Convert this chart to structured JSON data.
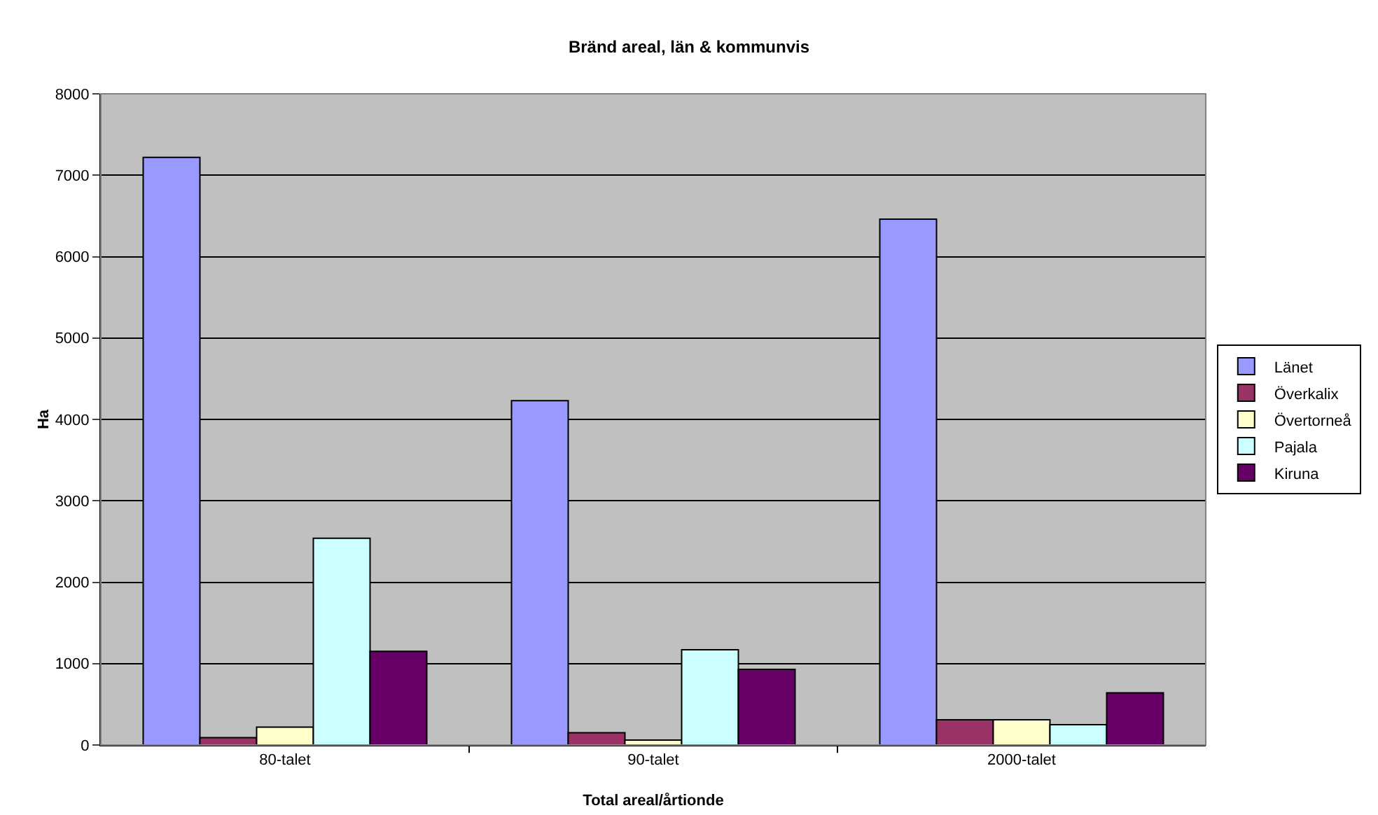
{
  "chart_data": {
    "type": "bar",
    "title": "Bränd areal, län & kommunvis",
    "xlabel": "Total areal/årtionde",
    "ylabel": "Ha",
    "categories": [
      "80-talet",
      "90-talet",
      "2000-talet"
    ],
    "series": [
      {
        "name": "Länet",
        "color": "#9999ff",
        "values": [
          7220,
          4230,
          6460
        ]
      },
      {
        "name": "Överkalix",
        "color": "#993366",
        "values": [
          90,
          150,
          310
        ]
      },
      {
        "name": "Övertorneå",
        "color": "#ffffcc",
        "values": [
          220,
          60,
          310
        ]
      },
      {
        "name": "Pajala",
        "color": "#ccffff",
        "values": [
          2540,
          1170,
          250
        ]
      },
      {
        "name": "Kiruna",
        "color": "#660066",
        "values": [
          1150,
          930,
          640
        ]
      }
    ],
    "ylim": [
      0,
      8000
    ],
    "yticks": [
      0,
      1000,
      2000,
      3000,
      4000,
      5000,
      6000,
      7000,
      8000
    ],
    "grid": "y",
    "legend": "right"
  }
}
